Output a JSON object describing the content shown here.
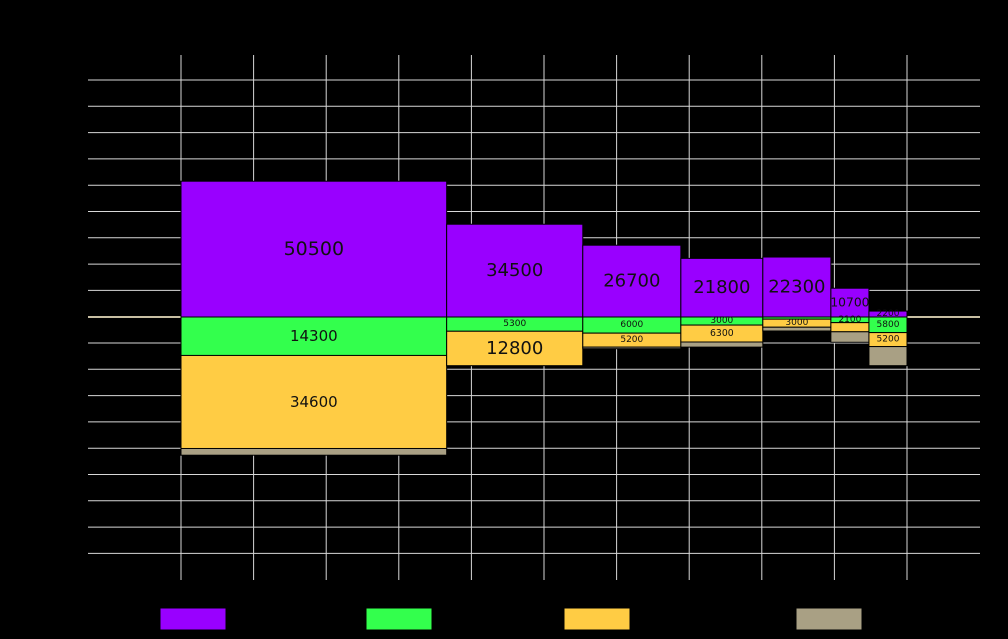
{
  "chart_data": {
    "type": "bar",
    "subtype": "variable-width stacked (marimekko), diverging above/below baseline",
    "title": "",
    "xlabel": "",
    "ylabel": "",
    "grid": true,
    "legend_position": "bottom",
    "x_gridlines": 11,
    "y_gridlines": 19,
    "series": [
      {
        "name": "",
        "color": "#9900ff",
        "direction": "up"
      },
      {
        "name": "",
        "color": "#33ff4d",
        "direction": "down"
      },
      {
        "name": "",
        "color": "#ffcc44",
        "direction": "down"
      },
      {
        "name": "",
        "color": "#a9a084",
        "direction": "down"
      }
    ],
    "columns": [
      {
        "width": 3.63,
        "values": [
          50500,
          14300,
          34600,
          2500
        ],
        "labels": [
          "50500",
          "14300",
          "34600",
          ""
        ]
      },
      {
        "width": 1.86,
        "values": [
          34500,
          5300,
          12800,
          0
        ],
        "labels": [
          "34500",
          "5300",
          "12800",
          ""
        ]
      },
      {
        "width": 1.34,
        "values": [
          26700,
          6000,
          5200,
          600
        ],
        "labels": [
          "26700",
          "6000",
          "5200",
          ""
        ]
      },
      {
        "width": 1.12,
        "values": [
          21800,
          3000,
          6300,
          1900
        ],
        "labels": [
          "21800",
          "3000",
          "6300",
          ""
        ]
      },
      {
        "width": 0.93,
        "values": [
          22300,
          800,
          3000,
          1400
        ],
        "labels": [
          "22300",
          "",
          "3000",
          ""
        ]
      },
      {
        "width": 0.52,
        "values": [
          10700,
          2100,
          3400,
          3900
        ],
        "labels": [
          "10700",
          "2100",
          "",
          ""
        ]
      },
      {
        "width": 0.52,
        "values": [
          2200,
          5800,
          5200,
          7100
        ],
        "labels": [
          "2200",
          "5800",
          "5200",
          ""
        ]
      }
    ]
  }
}
